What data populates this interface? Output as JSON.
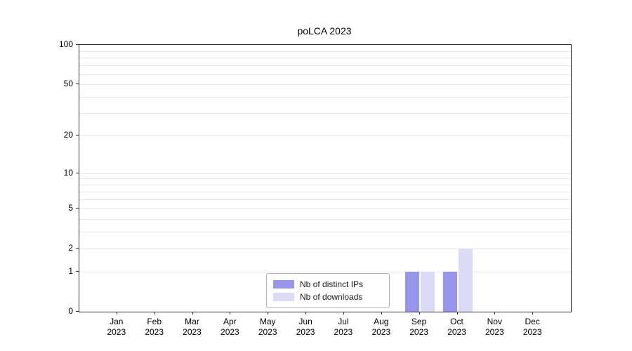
{
  "chart_data": {
    "type": "bar",
    "title": "poLCA 2023",
    "categories": [
      "Jan",
      "Feb",
      "Mar",
      "Apr",
      "May",
      "Jun",
      "Jul",
      "Aug",
      "Sep",
      "Oct",
      "Nov",
      "Dec"
    ],
    "x_year": "2023",
    "series": [
      {
        "name": "Nb of distinct IPs",
        "color": "#9695ea",
        "values": [
          0,
          0,
          0,
          0,
          0,
          0,
          0,
          0,
          1,
          1,
          0,
          0
        ]
      },
      {
        "name": "Nb of downloads",
        "color": "#dbdbf7",
        "values": [
          0,
          0,
          0,
          0,
          0,
          0,
          0,
          0,
          1,
          2,
          0,
          0
        ]
      }
    ],
    "y_ticks": [
      0,
      1,
      2,
      5,
      10,
      20,
      50,
      100
    ],
    "y_scale": "log1p",
    "y_max": 100,
    "ylim": [
      0,
      100
    ],
    "grid": true,
    "legend_position": "bottom-center"
  }
}
